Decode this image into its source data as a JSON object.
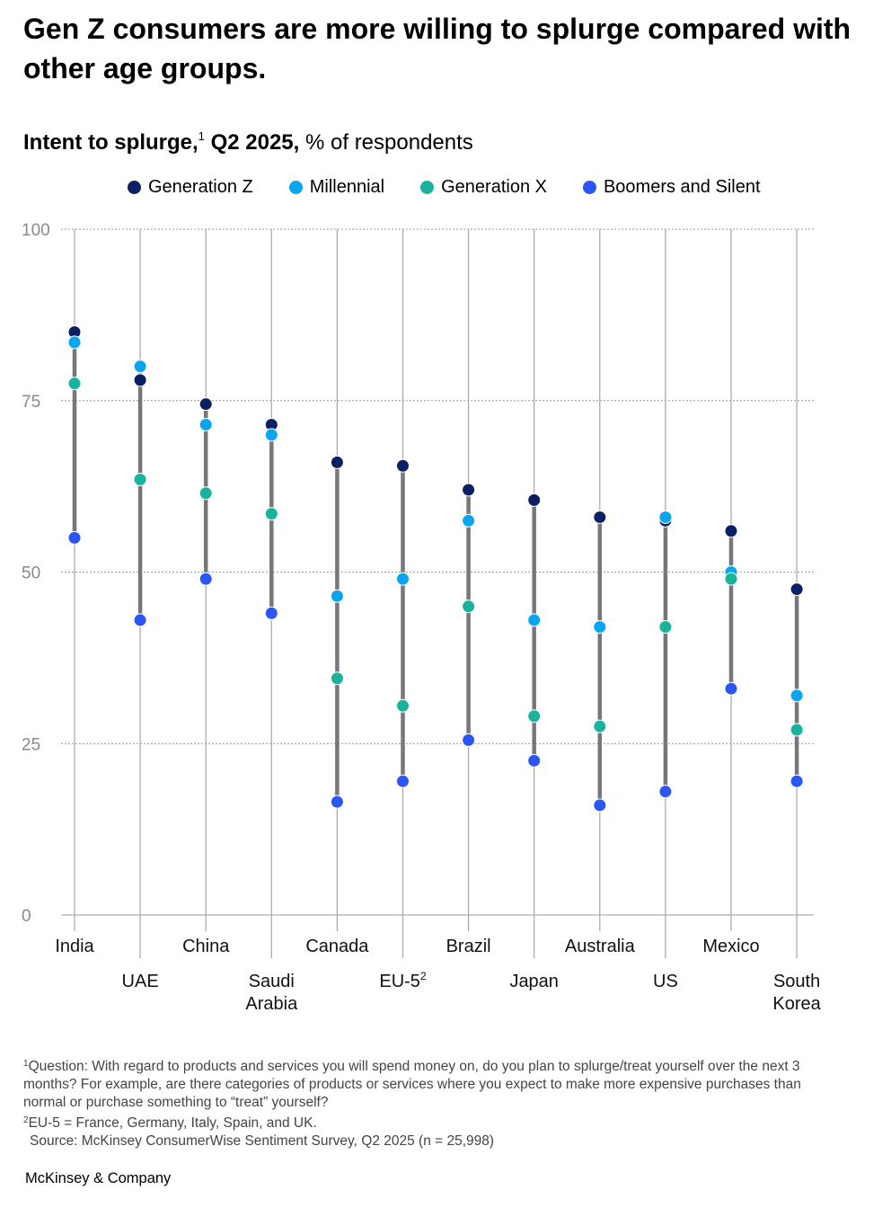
{
  "header": {
    "title": "Gen Z consumers are more willing to splurge compared with other age groups.",
    "subtitle_bold_a": "Intent to splurge,",
    "subtitle_sup": "1",
    "subtitle_bold_b": " Q2 2025,",
    "subtitle_rest": " % of respondents"
  },
  "chart_data": {
    "type": "scatter",
    "subtype": "dot-range",
    "title": "Intent to splurge, Q2 2025",
    "ylabel": "% of respondents",
    "ylim": [
      0,
      100
    ],
    "yticks": [
      0,
      25,
      50,
      75,
      100
    ],
    "grid": true,
    "legend_position": "top",
    "categories": [
      "India",
      "UAE",
      "China",
      "Saudi Arabia",
      "Canada",
      "EU-5",
      "Brazil",
      "Japan",
      "Australia",
      "US",
      "Mexico",
      "South Korea"
    ],
    "category_labels": [
      {
        "lines": [
          "India"
        ],
        "sup": ""
      },
      {
        "lines": [
          "UAE"
        ],
        "sup": ""
      },
      {
        "lines": [
          "China"
        ],
        "sup": ""
      },
      {
        "lines": [
          "Saudi",
          "Arabia"
        ],
        "sup": ""
      },
      {
        "lines": [
          "Canada"
        ],
        "sup": ""
      },
      {
        "lines": [
          "EU-5"
        ],
        "sup": "2"
      },
      {
        "lines": [
          "Brazil"
        ],
        "sup": ""
      },
      {
        "lines": [
          "Japan"
        ],
        "sup": ""
      },
      {
        "lines": [
          "Australia"
        ],
        "sup": ""
      },
      {
        "lines": [
          "US"
        ],
        "sup": ""
      },
      {
        "lines": [
          "Mexico"
        ],
        "sup": ""
      },
      {
        "lines": [
          "South",
          "Korea"
        ],
        "sup": ""
      }
    ],
    "series": [
      {
        "name": "Generation Z",
        "color": "#0b1f65",
        "values": [
          85,
          78,
          74.5,
          71.5,
          66,
          65.5,
          62,
          60.5,
          58,
          57.5,
          56,
          47.5
        ]
      },
      {
        "name": "Millennial",
        "color": "#0aa5ef",
        "values": [
          83.5,
          80,
          71.5,
          70,
          46.5,
          49,
          57.5,
          43,
          42,
          58,
          50,
          32
        ]
      },
      {
        "name": "Generation X",
        "color": "#19b39d",
        "values": [
          77.5,
          63.5,
          61.5,
          58.5,
          34.5,
          30.5,
          45,
          29,
          27.5,
          42,
          49,
          27
        ]
      },
      {
        "name": "Boomers and Silent",
        "color": "#2b55f5",
        "values": [
          55,
          43,
          49,
          44,
          16.5,
          19.5,
          25.5,
          22.5,
          16,
          18,
          33,
          19.5
        ]
      }
    ]
  },
  "footnotes": {
    "note1_sup": "1",
    "note1": "Question: With regard to products and services you will spend money on, do you plan to splurge/treat yourself over the next 3 months? For example, are there categories of products or services where you expect to make more expensive purchases than normal or purchase something to “treat” yourself?",
    "note2_sup": "2",
    "note2": "EU-5 = France, Germany, Italy, Spain, and UK.",
    "source": "Source: McKinsey ConsumerWise Sentiment Survey, Q2 2025 (n = 25,998)"
  },
  "brand": "McKinsey & Company"
}
